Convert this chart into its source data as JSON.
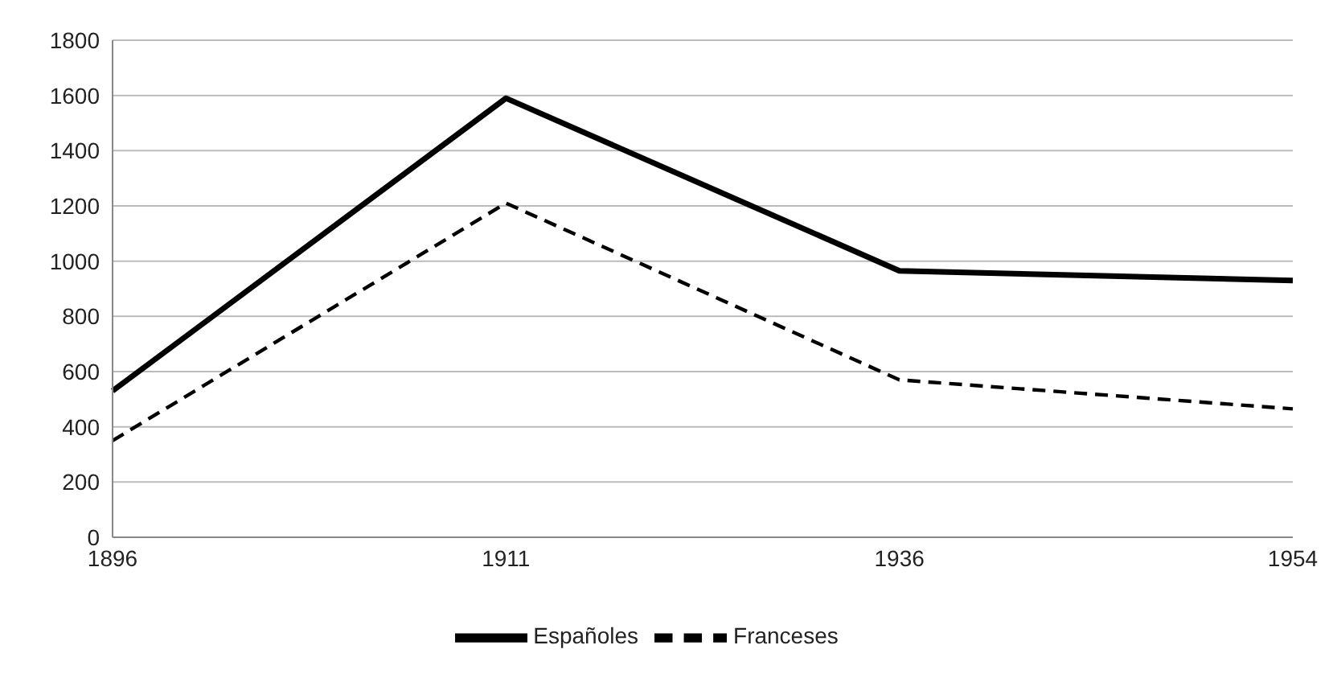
{
  "chart_data": {
    "type": "line",
    "categories": [
      "1896",
      "1911",
      "1936",
      "1954"
    ],
    "series": [
      {
        "name": "Franceses",
        "color": "#000000",
        "line_style": "dashed",
        "values": [
          350,
          1210,
          570,
          465
        ]
      },
      {
        "name": "Españoles",
        "color": "#000000",
        "line_style": "solid",
        "values": [
          530,
          1590,
          965,
          930
        ]
      }
    ],
    "ylim": [
      0,
      1800
    ],
    "yticks": [
      0,
      200,
      400,
      600,
      800,
      1000,
      1200,
      1400,
      1600,
      1800
    ],
    "grid": "y",
    "legend": "bottom",
    "marker": "none"
  }
}
